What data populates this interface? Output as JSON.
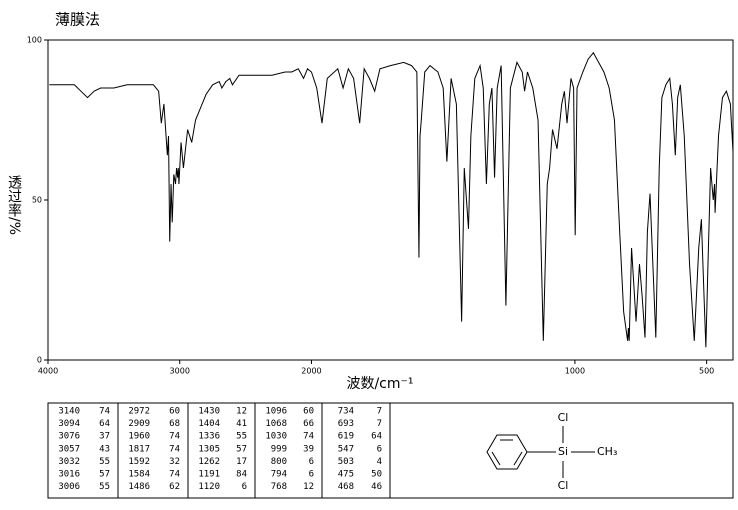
{
  "chart_data": {
    "type": "line",
    "title": "薄膜法",
    "x_label": "波数/cm⁻¹",
    "y_label": "透过率/%",
    "color": "#000000",
    "xlim": [
      4000,
      400
    ],
    "xticks": [
      4000,
      3000,
      2000,
      1000,
      500
    ],
    "x_scale": {
      "break": 2000,
      "expansion_below": 2
    },
    "ylim": [
      0,
      100
    ],
    "yticks": [
      0,
      50,
      100
    ],
    "x": [
      3990,
      3900,
      3800,
      3750,
      3700,
      3650,
      3600,
      3500,
      3400,
      3300,
      3200,
      3160,
      3140,
      3120,
      3094,
      3085,
      3076,
      3066,
      3057,
      3045,
      3032,
      3024,
      3016,
      3011,
      3006,
      2990,
      2972,
      2940,
      2909,
      2880,
      2850,
      2800,
      2750,
      2700,
      2680,
      2650,
      2620,
      2600,
      2550,
      2500,
      2400,
      2300,
      2200,
      2150,
      2100,
      2060,
      2030,
      2000,
      1980,
      1960,
      1940,
      1900,
      1880,
      1860,
      1840,
      1817,
      1800,
      1780,
      1760,
      1740,
      1700,
      1650,
      1620,
      1600,
      1592,
      1588,
      1584,
      1570,
      1550,
      1520,
      1500,
      1486,
      1470,
      1450,
      1430,
      1420,
      1404,
      1395,
      1380,
      1360,
      1348,
      1336,
      1325,
      1315,
      1305,
      1295,
      1280,
      1262,
      1245,
      1220,
      1200,
      1191,
      1180,
      1160,
      1140,
      1120,
      1105,
      1096,
      1085,
      1068,
      1050,
      1040,
      1030,
      1015,
      1005,
      999,
      992,
      970,
      950,
      930,
      910,
      890,
      870,
      850,
      830,
      815,
      800,
      797,
      794,
      785,
      768,
      755,
      745,
      734,
      725,
      715,
      693,
      680,
      670,
      655,
      640,
      630,
      619,
      610,
      600,
      585,
      565,
      547,
      530,
      520,
      510,
      503,
      495,
      485,
      475,
      470,
      468,
      455,
      440,
      425,
      410,
      400
    ],
    "values": [
      86,
      86,
      86,
      84,
      82,
      84,
      85,
      85,
      86,
      86,
      86,
      84,
      74,
      80,
      64,
      70,
      37,
      55,
      43,
      58,
      55,
      60,
      57,
      60,
      55,
      68,
      60,
      72,
      68,
      75,
      78,
      83,
      86,
      87,
      85,
      87,
      88,
      86,
      89,
      89,
      89,
      89,
      90,
      90,
      91,
      88,
      91,
      90,
      85,
      74,
      88,
      91,
      85,
      91,
      88,
      74,
      91,
      88,
      84,
      91,
      92,
      93,
      92,
      90,
      32,
      70,
      74,
      90,
      92,
      90,
      85,
      62,
      88,
      80,
      12,
      60,
      41,
      70,
      88,
      92,
      85,
      55,
      80,
      85,
      57,
      85,
      92,
      17,
      85,
      93,
      90,
      84,
      90,
      85,
      75,
      6,
      55,
      60,
      72,
      66,
      80,
      84,
      74,
      88,
      85,
      39,
      85,
      90,
      94,
      96,
      93,
      90,
      85,
      75,
      40,
      15,
      6,
      10,
      6,
      35,
      12,
      30,
      20,
      7,
      40,
      52,
      7,
      60,
      82,
      86,
      88,
      80,
      64,
      82,
      86,
      70,
      30,
      6,
      35,
      44,
      20,
      4,
      30,
      60,
      50,
      55,
      46,
      70,
      82,
      84,
      80,
      65
    ]
  },
  "peak_table": {
    "rows": [
      [
        3140,
        74,
        2972,
        60,
        1430,
        12,
        1096,
        60,
        734,
        7
      ],
      [
        3094,
        64,
        2909,
        68,
        1404,
        41,
        1068,
        66,
        693,
        7
      ],
      [
        3076,
        37,
        1960,
        74,
        1336,
        55,
        1030,
        74,
        619,
        64
      ],
      [
        3057,
        43,
        1817,
        74,
        1305,
        57,
        999,
        39,
        547,
        6
      ],
      [
        3032,
        55,
        1592,
        32,
        1262,
        17,
        800,
        6,
        503,
        4
      ],
      [
        3016,
        57,
        1584,
        74,
        1191,
        84,
        794,
        6,
        475,
        50
      ],
      [
        3006,
        55,
        1486,
        62,
        1120,
        6,
        768,
        12,
        468,
        46
      ]
    ]
  },
  "structure": {
    "atoms": {
      "top": "Cl",
      "center": "Si",
      "right": "CH₃",
      "bottom": "Cl"
    }
  }
}
